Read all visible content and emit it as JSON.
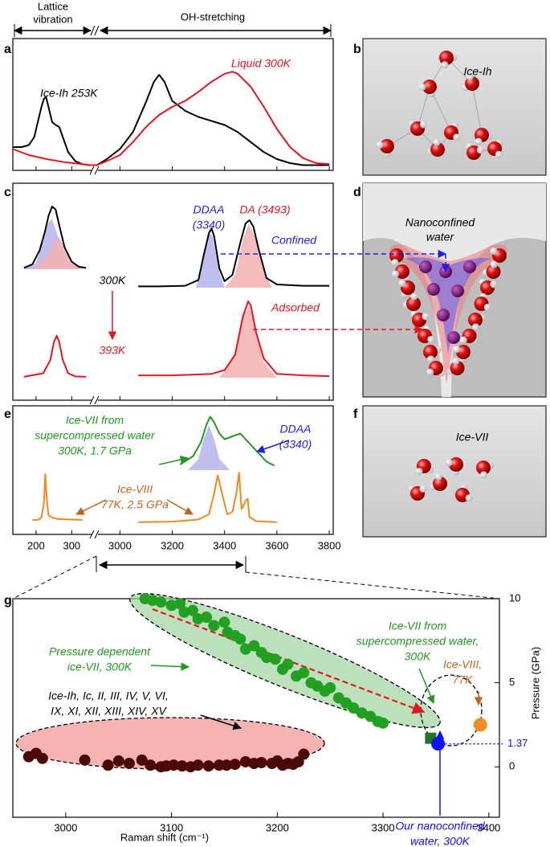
{
  "header": {
    "left": [
      "Lattice",
      "vibration"
    ],
    "right": "OH-stretching"
  },
  "panel_labels": [
    "a",
    "b",
    "c",
    "d",
    "e",
    "f",
    "g"
  ],
  "images": {
    "b": "Ice-Ih",
    "d": [
      "Nanoconfined",
      "water"
    ],
    "f": "Ice-VII"
  },
  "chart_data": [
    {
      "type": "spectrum",
      "xlim": [
        [
          135,
          360
        ],
        [
          2910,
          3815
        ]
      ],
      "series": [
        {
          "color": "#000000",
          "x": [
            135,
            160,
            180,
            195,
            205,
            215,
            222,
            228,
            235,
            245,
            255,
            265,
            275,
            290,
            310,
            330,
            350,
            2912,
            2950,
            3000,
            3050,
            3100,
            3130,
            3150,
            3170,
            3200,
            3250,
            3300,
            3350,
            3400,
            3450,
            3500,
            3550,
            3600,
            3650,
            3700,
            3750,
            3800
          ],
          "values": [
            0.2,
            0.2,
            0.22,
            0.3,
            0.45,
            0.6,
            0.68,
            0.7,
            0.6,
            0.45,
            0.42,
            0.4,
            0.3,
            0.15,
            0.06,
            0.03,
            0.02,
            0.02,
            0.08,
            0.18,
            0.35,
            0.65,
            0.85,
            0.92,
            0.85,
            0.66,
            0.56,
            0.5,
            0.46,
            0.42,
            0.35,
            0.25,
            0.15,
            0.08,
            0.04,
            0.02,
            0.02,
            0.02
          ]
        },
        {
          "color": "#e8141e",
          "x": [
            135,
            180,
            230,
            280,
            330,
            350,
            2912,
            2950,
            3000,
            3050,
            3100,
            3150,
            3200,
            3250,
            3300,
            3350,
            3400,
            3430,
            3450,
            3500,
            3550,
            3600,
            3650,
            3700,
            3750,
            3800
          ],
          "values": [
            0.18,
            0.12,
            0.08,
            0.05,
            0.03,
            0.02,
            0.02,
            0.06,
            0.12,
            0.25,
            0.4,
            0.52,
            0.6,
            0.66,
            0.75,
            0.85,
            0.93,
            0.95,
            0.93,
            0.8,
            0.6,
            0.38,
            0.2,
            0.09,
            0.04,
            0.03
          ]
        }
      ],
      "annotations": [
        "Ice-Ih 253K",
        "Liquid 300K"
      ]
    },
    {
      "type": "spectrum",
      "xlim": [
        [
          135,
          360
        ],
        [
          2910,
          3815
        ]
      ],
      "series": [
        {
          "color": "#b4b4ec",
          "fill": true,
          "x": [
            166,
            200,
            220,
            235,
            245,
            260,
            280,
            300,
            330
          ],
          "values": [
            0,
            0.1,
            0.45,
            0.75,
            0.8,
            0.55,
            0.25,
            0.08,
            0
          ]
        },
        {
          "color": "#f2b0b0",
          "fill": true,
          "x": [
            190,
            230,
            250,
            265,
            280,
            300,
            330
          ],
          "values": [
            0,
            0.2,
            0.45,
            0.5,
            0.35,
            0.12,
            0
          ]
        },
        {
          "color": "#000000",
          "x": [
            166,
            190,
            210,
            225,
            235,
            245,
            255,
            265,
            280,
            300,
            320,
            340
          ],
          "values": [
            0.02,
            0.08,
            0.3,
            0.6,
            0.85,
            1.0,
            0.95,
            0.7,
            0.35,
            0.12,
            0.04,
            0.02
          ]
        },
        {
          "color": "#b4b4ec",
          "fill": true,
          "x": [
            3290,
            3320,
            3340,
            3355,
            3380,
            3400
          ],
          "values": [
            0,
            0.45,
            0.85,
            0.8,
            0.25,
            0
          ]
        },
        {
          "color": "#f2b0b0",
          "fill": true,
          "x": [
            3400,
            3440,
            3470,
            3493,
            3520,
            3550,
            3580
          ],
          "values": [
            0,
            0.2,
            0.75,
            1.0,
            0.75,
            0.3,
            0
          ]
        },
        {
          "color": "#000000",
          "x": [
            3070,
            3150,
            3250,
            3300,
            3320,
            3340,
            3350,
            3360,
            3380,
            3400,
            3430,
            3460,
            3480,
            3495,
            3510,
            3530,
            3560,
            3600,
            3700,
            3800
          ],
          "values": [
            0.02,
            0.02,
            0.03,
            0.12,
            0.5,
            0.85,
            0.92,
            0.8,
            0.3,
            0.1,
            0.2,
            0.7,
            1.0,
            1.05,
            0.95,
            0.6,
            0.15,
            0.05,
            0.03,
            0.03
          ]
        },
        {
          "color": "#e8141e",
          "x": [
            166,
            220,
            240,
            250,
            258,
            265,
            275,
            290,
            310,
            340
          ],
          "values": [
            0.02,
            0.1,
            0.4,
            0.8,
            0.95,
            0.8,
            0.4,
            0.1,
            0.03,
            0.02
          ]
        },
        {
          "color": "#f2b0b0",
          "fill": true,
          "x": [
            3380,
            3440,
            3470,
            3495,
            3520,
            3550,
            3600
          ],
          "values": [
            0,
            0.3,
            0.8,
            0.95,
            0.6,
            0.2,
            0
          ]
        },
        {
          "color": "#e8141e",
          "x": [
            3070,
            3200,
            3350,
            3400,
            3440,
            3470,
            3490,
            3500,
            3520,
            3550,
            3600,
            3700,
            3800
          ],
          "values": [
            0.03,
            0.03,
            0.05,
            0.1,
            0.3,
            0.8,
            1.0,
            0.95,
            0.6,
            0.25,
            0.05,
            0.03,
            0.02
          ]
        }
      ],
      "annotations": [
        [
          "DDAA",
          "(3340)"
        ],
        "DA (3493)",
        "Confined",
        "Adsorbed",
        "300K",
        "393K"
      ]
    },
    {
      "type": "spectrum",
      "xlim": [
        [
          135,
          360
        ],
        [
          2910,
          3815
        ]
      ],
      "xticks": [
        200,
        300,
        3000,
        3200,
        3400,
        3600,
        3800
      ],
      "series": [
        {
          "color": "#b4b4ec",
          "fill": true,
          "x": [
            3260,
            3300,
            3320,
            3340,
            3360,
            3380,
            3420
          ],
          "values": [
            0,
            0.2,
            0.55,
            0.8,
            0.55,
            0.2,
            0
          ]
        },
        {
          "color": "#1f9a1f",
          "x": [
            3230,
            3280,
            3310,
            3330,
            3345,
            3360,
            3380,
            3400,
            3430,
            3460,
            3480,
            3500,
            3530,
            3560,
            3590
          ],
          "values": [
            0.1,
            0.25,
            0.5,
            0.8,
            0.95,
            0.85,
            0.65,
            0.55,
            0.6,
            0.65,
            0.55,
            0.45,
            0.3,
            0.15,
            0.08
          ]
        },
        {
          "color": "#f08a1c",
          "x": [
            190,
            205,
            215,
            222,
            226,
            230,
            235,
            245,
            260,
            290,
            330
          ],
          "values": [
            0.05,
            0.05,
            0.1,
            0.4,
            1.0,
            0.5,
            0.15,
            0.1,
            0.07,
            0.06,
            0.05
          ]
        },
        {
          "color": "#f08a1c",
          "x": [
            3070,
            3200,
            3300,
            3340,
            3360,
            3374,
            3390,
            3410,
            3430,
            3445,
            3455,
            3465,
            3480,
            3488,
            3495,
            3520,
            3600
          ],
          "values": [
            0.05,
            0.06,
            0.1,
            0.2,
            0.6,
            0.95,
            0.6,
            0.2,
            0.25,
            0.6,
            1.0,
            0.3,
            0.45,
            0.5,
            0.15,
            0.07,
            0.05
          ]
        }
      ],
      "annotations": [
        [
          "Ice-VII from",
          "supercompressed water",
          "300K, 1.7 GPa"
        ],
        [
          "DDAA",
          "(3340)"
        ],
        [
          "Ice-VIII",
          "77K, 2.5 GPa"
        ]
      ]
    },
    {
      "type": "scatter",
      "xlabel": "Raman shift (cm⁻¹)",
      "ylabel": "Pressure (GPa)",
      "xlim": [
        2950,
        3410
      ],
      "xticks": [
        3000,
        3100,
        3200,
        3300,
        3400
      ],
      "ylim": [
        -3,
        10
      ],
      "yticks": [
        0,
        5,
        10
      ],
      "reference": 1.37,
      "series": [
        {
          "color": "#4a0808",
          "marker": "circle",
          "x": [
            2965,
            2972,
            2978,
            3018,
            3040,
            3050,
            3060,
            3072,
            3080,
            3090,
            3095,
            3102,
            3110,
            3118,
            3125,
            3135,
            3145,
            3152,
            3160,
            3170,
            3178,
            3185,
            3195,
            3200,
            3205,
            3210,
            3215,
            3220,
            3225
          ],
          "values": [
            0.6,
            0.8,
            0.5,
            0.4,
            0.1,
            0.35,
            0.2,
            0.4,
            0.1,
            0,
            0.05,
            0.1,
            0.05,
            0,
            0.1,
            0.05,
            0.1,
            0.1,
            0.15,
            0.3,
            0.2,
            0.25,
            0.2,
            0.35,
            0.1,
            0.2,
            0.15,
            0.3,
            0.75
          ]
        },
        {
          "color": "#22a022",
          "marker": "circle",
          "x": [
            3075,
            3082,
            3090,
            3100,
            3108,
            3112,
            3120,
            3125,
            3133,
            3140,
            3150,
            3153,
            3160,
            3165,
            3170,
            3178,
            3185,
            3190,
            3198,
            3205,
            3210,
            3218,
            3225,
            3232,
            3238,
            3245,
            3250,
            3258,
            3265,
            3272,
            3280,
            3288,
            3295,
            3300
          ],
          "values": [
            10,
            9.9,
            9.8,
            9.6,
            9.7,
            9.2,
            9.3,
            8.8,
            8.9,
            8.4,
            8.6,
            8.0,
            7.8,
            7.6,
            7.0,
            7.2,
            6.8,
            6.5,
            6.4,
            5.8,
            6.1,
            5.4,
            5.6,
            5.0,
            4.8,
            4.5,
            4.7,
            4.1,
            3.8,
            3.5,
            3.2,
            3.0,
            2.7,
            2.6
          ]
        },
        {
          "color": "#1f7a1f",
          "marker": "square",
          "x": [
            3345
          ],
          "values": [
            1.7
          ]
        },
        {
          "color": "#f28c1e",
          "marker": "circle",
          "x": [
            3392
          ],
          "values": [
            2.5
          ]
        },
        {
          "color": "#1010ff",
          "marker": "circle",
          "x": [
            3352
          ],
          "values": [
            1.37
          ]
        }
      ],
      "annotations": [
        [
          "Pressure dependent",
          "ice-VII, 300K"
        ],
        [
          "Ice-VII from",
          "supercompressed water,",
          "300K"
        ],
        [
          "Ice-VIII,",
          "77K"
        ],
        [
          "Ice-Ih, Ic, II, III, IV, V, VI,",
          "IX, XI, XII, XIII, XIV, XV"
        ],
        [
          "Our nanoconfined",
          "water, 300K"
        ]
      ]
    }
  ]
}
